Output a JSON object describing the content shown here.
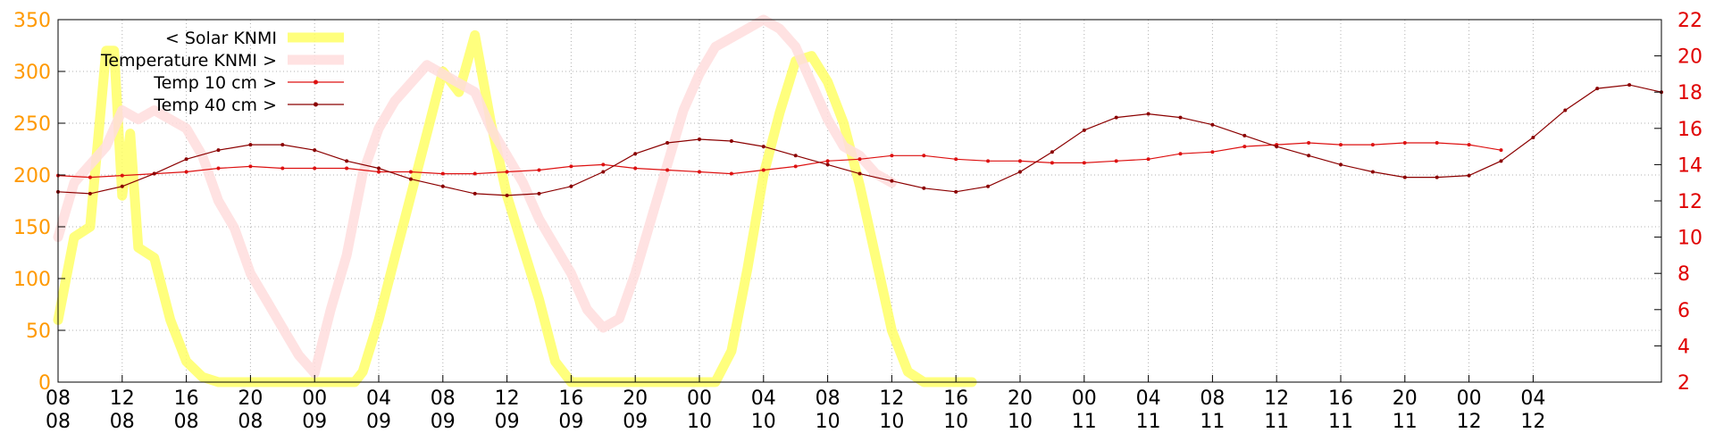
{
  "chart_data": {
    "type": "line",
    "title": "",
    "xlabel": "",
    "ylabel": "",
    "y2label": "",
    "grid": true,
    "legend_position": "top-left",
    "x_range_hours": [
      0,
      100
    ],
    "ylim": [
      0,
      350
    ],
    "y2lim": [
      2,
      22
    ],
    "left_ticks": [
      "0",
      "50",
      "100",
      "150",
      "200",
      "250",
      "300",
      "350"
    ],
    "right_ticks": [
      "2",
      "4",
      "6",
      "8",
      "10",
      "12",
      "14",
      "16",
      "18",
      "20",
      "22"
    ],
    "x_ticks": [
      {
        "hour": "08",
        "day": "08"
      },
      {
        "hour": "12",
        "day": "08"
      },
      {
        "hour": "16",
        "day": "08"
      },
      {
        "hour": "20",
        "day": "08"
      },
      {
        "hour": "00",
        "day": "09"
      },
      {
        "hour": "04",
        "day": "09"
      },
      {
        "hour": "08",
        "day": "09"
      },
      {
        "hour": "12",
        "day": "09"
      },
      {
        "hour": "16",
        "day": "09"
      },
      {
        "hour": "20",
        "day": "09"
      },
      {
        "hour": "00",
        "day": "10"
      },
      {
        "hour": "04",
        "day": "10"
      },
      {
        "hour": "08",
        "day": "10"
      },
      {
        "hour": "12",
        "day": "10"
      },
      {
        "hour": "16",
        "day": "10"
      },
      {
        "hour": "20",
        "day": "10"
      },
      {
        "hour": "00",
        "day": "11"
      },
      {
        "hour": "04",
        "day": "11"
      },
      {
        "hour": "08",
        "day": "11"
      },
      {
        "hour": "12",
        "day": "11"
      },
      {
        "hour": "16",
        "day": "11"
      },
      {
        "hour": "20",
        "day": "11"
      },
      {
        "hour": "00",
        "day": "12"
      },
      {
        "hour": "04",
        "day": "12"
      }
    ],
    "series": [
      {
        "name": "< Solar KNMI",
        "axis": "left",
        "color": "#ffff66",
        "style": "thick",
        "points": [
          [
            0,
            60
          ],
          [
            1,
            140
          ],
          [
            2,
            150
          ],
          [
            3,
            320
          ],
          [
            3.5,
            320
          ],
          [
            4,
            180
          ],
          [
            4.5,
            240
          ],
          [
            5,
            130
          ],
          [
            6,
            120
          ],
          [
            7,
            60
          ],
          [
            8,
            20
          ],
          [
            9,
            5
          ],
          [
            10,
            0
          ],
          [
            12,
            0
          ],
          [
            14,
            0
          ],
          [
            16,
            0
          ],
          [
            18,
            0
          ],
          [
            18.5,
            0
          ],
          [
            19,
            10
          ],
          [
            20,
            60
          ],
          [
            21,
            120
          ],
          [
            22,
            180
          ],
          [
            23,
            240
          ],
          [
            24,
            300
          ],
          [
            25,
            280
          ],
          [
            26,
            335
          ],
          [
            27,
            250
          ],
          [
            28,
            180
          ],
          [
            29,
            130
          ],
          [
            30,
            80
          ],
          [
            31,
            20
          ],
          [
            32,
            0
          ],
          [
            34,
            0
          ],
          [
            36,
            0
          ],
          [
            38,
            0
          ],
          [
            40,
            0
          ],
          [
            41,
            0
          ],
          [
            42,
            30
          ],
          [
            43,
            110
          ],
          [
            44,
            200
          ],
          [
            45,
            260
          ],
          [
            46,
            310
          ],
          [
            47,
            315
          ],
          [
            48,
            290
          ],
          [
            49,
            250
          ],
          [
            50,
            190
          ],
          [
            51,
            120
          ],
          [
            52,
            50
          ],
          [
            53,
            10
          ],
          [
            54,
            0
          ],
          [
            56,
            0
          ],
          [
            57,
            0
          ]
        ]
      },
      {
        "name": "Temperature KNMI >",
        "axis": "right",
        "color": "#ffdddd",
        "style": "thick",
        "points": [
          [
            0,
            10
          ],
          [
            1,
            13
          ],
          [
            2,
            14
          ],
          [
            3,
            15
          ],
          [
            4,
            17
          ],
          [
            5,
            16.5
          ],
          [
            6,
            17
          ],
          [
            7,
            16.5
          ],
          [
            8,
            16
          ],
          [
            9,
            14.5
          ],
          [
            10,
            12
          ],
          [
            11,
            10.5
          ],
          [
            12,
            8
          ],
          [
            13,
            6.5
          ],
          [
            14,
            5
          ],
          [
            15,
            3.5
          ],
          [
            16,
            2.5
          ],
          [
            17,
            6
          ],
          [
            18,
            9
          ],
          [
            19,
            13.5
          ],
          [
            20,
            16
          ],
          [
            21,
            17.5
          ],
          [
            22,
            18.5
          ],
          [
            23,
            19.5
          ],
          [
            24,
            19
          ],
          [
            25,
            18.5
          ],
          [
            26,
            18
          ],
          [
            27,
            16
          ],
          [
            28,
            14.5
          ],
          [
            29,
            13
          ],
          [
            30,
            11
          ],
          [
            31,
            9.5
          ],
          [
            32,
            8
          ],
          [
            33,
            6
          ],
          [
            34,
            5
          ],
          [
            35,
            5.5
          ],
          [
            36,
            8
          ],
          [
            37,
            11
          ],
          [
            38,
            14
          ],
          [
            39,
            17
          ],
          [
            40,
            19
          ],
          [
            41,
            20.5
          ],
          [
            42,
            21
          ],
          [
            43,
            21.5
          ],
          [
            44,
            22
          ],
          [
            45,
            21.5
          ],
          [
            46,
            20.5
          ],
          [
            47,
            18.5
          ],
          [
            48,
            16.5
          ],
          [
            49,
            15
          ],
          [
            50,
            14.5
          ],
          [
            51,
            13.5
          ],
          [
            52,
            13
          ]
        ]
      },
      {
        "name": "Temp 10 cm >",
        "axis": "right",
        "color": "#dd1111",
        "style": "points",
        "points": [
          [
            0,
            13.4
          ],
          [
            2,
            13.3
          ],
          [
            4,
            13.4
          ],
          [
            6,
            13.5
          ],
          [
            8,
            13.6
          ],
          [
            10,
            13.8
          ],
          [
            12,
            13.9
          ],
          [
            14,
            13.8
          ],
          [
            16,
            13.8
          ],
          [
            18,
            13.8
          ],
          [
            20,
            13.6
          ],
          [
            22,
            13.6
          ],
          [
            24,
            13.5
          ],
          [
            26,
            13.5
          ],
          [
            28,
            13.6
          ],
          [
            30,
            13.7
          ],
          [
            32,
            13.9
          ],
          [
            34,
            14.0
          ],
          [
            36,
            13.8
          ],
          [
            38,
            13.7
          ],
          [
            40,
            13.6
          ],
          [
            42,
            13.5
          ],
          [
            44,
            13.7
          ],
          [
            46,
            13.9
          ],
          [
            48,
            14.2
          ],
          [
            50,
            14.3
          ],
          [
            52,
            14.5
          ],
          [
            54,
            14.5
          ],
          [
            56,
            14.3
          ],
          [
            58,
            14.2
          ],
          [
            60,
            14.2
          ],
          [
            62,
            14.1
          ],
          [
            64,
            14.1
          ],
          [
            66,
            14.2
          ],
          [
            68,
            14.3
          ],
          [
            70,
            14.6
          ],
          [
            72,
            14.7
          ],
          [
            74,
            15.0
          ],
          [
            76,
            15.1
          ],
          [
            78,
            15.2
          ],
          [
            80,
            15.1
          ],
          [
            82,
            15.1
          ],
          [
            84,
            15.2
          ],
          [
            86,
            15.2
          ],
          [
            88,
            15.1
          ],
          [
            90,
            14.8
          ]
        ]
      },
      {
        "name": "Temp 40 cm >",
        "axis": "right",
        "color": "#8b0000",
        "style": "points",
        "points": [
          [
            0,
            12.5
          ],
          [
            2,
            12.4
          ],
          [
            4,
            12.8
          ],
          [
            6,
            13.5
          ],
          [
            8,
            14.3
          ],
          [
            10,
            14.8
          ],
          [
            12,
            15.1
          ],
          [
            14,
            15.1
          ],
          [
            16,
            14.8
          ],
          [
            18,
            14.2
          ],
          [
            20,
            13.8
          ],
          [
            22,
            13.2
          ],
          [
            24,
            12.8
          ],
          [
            26,
            12.4
          ],
          [
            28,
            12.3
          ],
          [
            30,
            12.4
          ],
          [
            32,
            12.8
          ],
          [
            34,
            13.6
          ],
          [
            36,
            14.6
          ],
          [
            38,
            15.2
          ],
          [
            40,
            15.4
          ],
          [
            42,
            15.3
          ],
          [
            44,
            15.0
          ],
          [
            46,
            14.5
          ],
          [
            48,
            14.0
          ],
          [
            50,
            13.5
          ],
          [
            52,
            13.1
          ],
          [
            54,
            12.7
          ],
          [
            56,
            12.5
          ],
          [
            58,
            12.8
          ],
          [
            60,
            13.6
          ],
          [
            62,
            14.7
          ],
          [
            64,
            15.9
          ],
          [
            66,
            16.6
          ],
          [
            68,
            16.8
          ],
          [
            70,
            16.6
          ],
          [
            72,
            16.2
          ],
          [
            74,
            15.6
          ],
          [
            76,
            15.0
          ],
          [
            78,
            14.5
          ],
          [
            80,
            14.0
          ],
          [
            82,
            13.6
          ],
          [
            84,
            13.3
          ],
          [
            86,
            13.3
          ],
          [
            88,
            13.4
          ],
          [
            90,
            14.2
          ],
          [
            92,
            15.5
          ],
          [
            94,
            17.0
          ],
          [
            96,
            18.2
          ],
          [
            98,
            18.4
          ],
          [
            100,
            18.0
          ]
        ]
      }
    ]
  }
}
